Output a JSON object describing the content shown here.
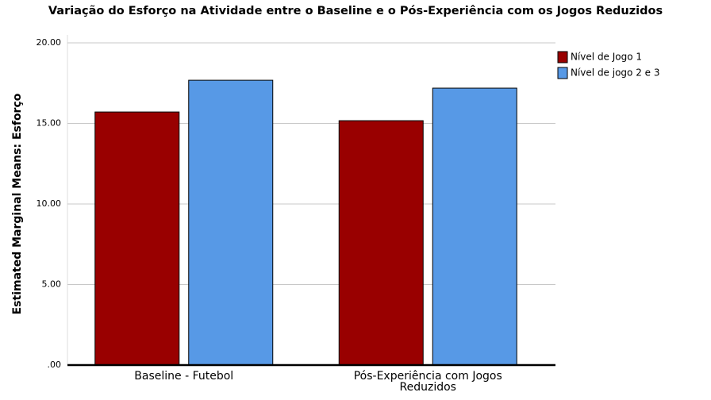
{
  "chart_data": {
    "type": "bar",
    "title": "Variação do Esforço na Atividade entre o Baseline e o Pós-Experiência com os Jogos Reduzidos",
    "y_label": "Estimated Marginal Means: Esforço",
    "categories": [
      "Baseline - Futebol",
      "Pós-Experiência com Jogos Reduzidos"
    ],
    "series": [
      {
        "name": "Nível de Jogo 1",
        "color": "#990000",
        "values": [
          15.71,
          15.17
        ]
      },
      {
        "name": "Nível de jogo 2 e 3",
        "color": "#5799e6",
        "values": [
          17.68,
          17.19
        ]
      }
    ],
    "ylim": [
      0,
      20
    ],
    "yticks": [
      {
        "value": 0,
        "label": ".00"
      },
      {
        "value": 5,
        "label": "5.00"
      },
      {
        "value": 10,
        "label": "10.00"
      },
      {
        "value": 15,
        "label": "15.00"
      },
      {
        "value": 20,
        "label": "20.00"
      }
    ],
    "grid": true,
    "legend": "top-right"
  }
}
